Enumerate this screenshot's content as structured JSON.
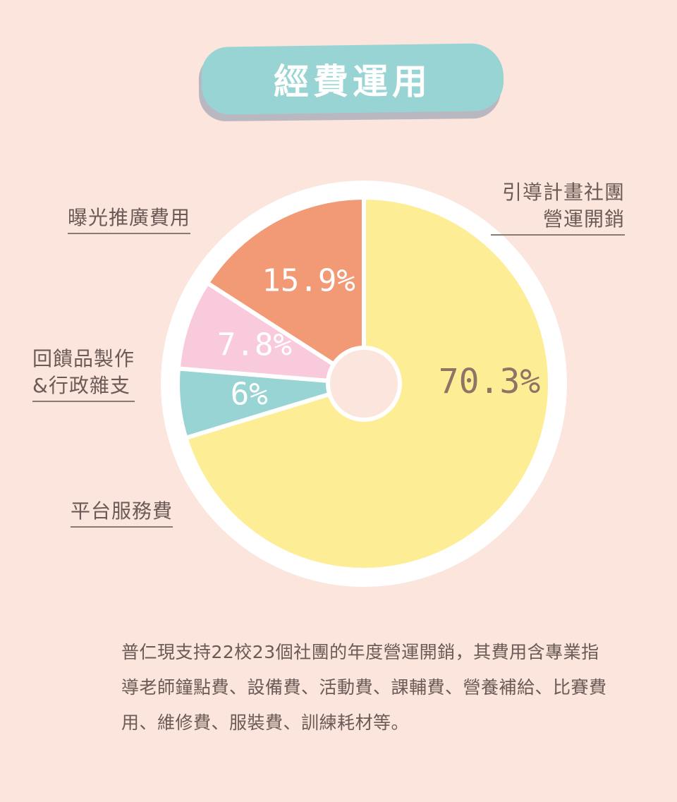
{
  "header": {
    "title": "經費運用"
  },
  "chart_data": {
    "type": "pie",
    "title": "經費運用",
    "slices": [
      {
        "label": "引導計畫社團營運開銷",
        "value": 70.3,
        "display": "70.3%",
        "color": "#fdee96",
        "text_color": "#8c7565"
      },
      {
        "label": "平台服務費",
        "value": 6,
        "display": "6%",
        "color": "#98d4d4",
        "text_color": "#ffffff"
      },
      {
        "label": "回饋品製作&行政雜支",
        "value": 7.8,
        "display": "7.8%",
        "color": "#f9c9dc",
        "text_color": "#ffffff"
      },
      {
        "label": "曝光推廣費用",
        "value": 15.9,
        "display": "15.9%",
        "color": "#f29a76",
        "text_color": "#ffffff"
      }
    ]
  },
  "labels": {
    "operations_line1": "引導計畫社團",
    "operations_line2": "營運開銷",
    "promotion": "曝光推廣費用",
    "gifts_line1": "回饋品製作",
    "gifts_line2": "&行政雜支",
    "platform": "平台服務費"
  },
  "description": "普仁現支持22校23個社團的年度營運開銷，其費用含專業指導老師鐘點費、設備費、活動費、課輔費、營養補給、比賽費用、維修費、服裝費、訓練耗材等。"
}
